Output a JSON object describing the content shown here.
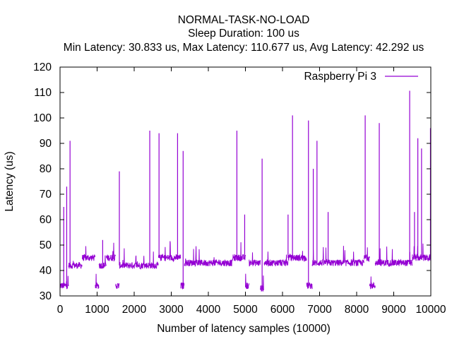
{
  "chart_data": {
    "type": "line",
    "title": "NORMAL-TASK-NO-LOAD",
    "subtitle": "Sleep Duration: 100 us",
    "stats": "Min Latency: 30.833 us, Max Latency: 110.677 us, Avg Latency: 42.292 us",
    "xlabel": "Number of latency samples (10000)",
    "ylabel": "Latency (us)",
    "xlim": [
      0,
      10000
    ],
    "ylim": [
      30,
      120
    ],
    "xticks": [
      0,
      1000,
      2000,
      3000,
      4000,
      5000,
      6000,
      7000,
      8000,
      9000,
      10000
    ],
    "yticks": [
      30,
      40,
      50,
      60,
      70,
      80,
      90,
      100,
      110,
      120
    ],
    "grid": false,
    "legend_position": "top-right",
    "series": [
      {
        "name": "Raspberry Pi 3",
        "color": "#9400d3",
        "segments": [
          {
            "x_start": 0,
            "x_end": 230,
            "level": 34
          },
          {
            "x_start": 230,
            "x_end": 600,
            "level": 42
          },
          {
            "x_start": 600,
            "x_end": 950,
            "level": 45
          },
          {
            "x_start": 950,
            "x_end": 1050,
            "level": 34
          },
          {
            "x_start": 1050,
            "x_end": 1250,
            "level": 42
          },
          {
            "x_start": 1250,
            "x_end": 1500,
            "level": 45
          },
          {
            "x_start": 1500,
            "x_end": 1600,
            "level": 34
          },
          {
            "x_start": 1600,
            "x_end": 2650,
            "level": 42
          },
          {
            "x_start": 2650,
            "x_end": 3250,
            "level": 45
          },
          {
            "x_start": 3250,
            "x_end": 3350,
            "level": 34
          },
          {
            "x_start": 3350,
            "x_end": 4650,
            "level": 43
          },
          {
            "x_start": 4650,
            "x_end": 5000,
            "level": 45
          },
          {
            "x_start": 5000,
            "x_end": 5100,
            "level": 34
          },
          {
            "x_start": 5100,
            "x_end": 5400,
            "level": 43
          },
          {
            "x_start": 5400,
            "x_end": 5500,
            "level": 33
          },
          {
            "x_start": 5500,
            "x_end": 6150,
            "level": 43
          },
          {
            "x_start": 6150,
            "x_end": 6650,
            "level": 45
          },
          {
            "x_start": 6650,
            "x_end": 6800,
            "level": 34
          },
          {
            "x_start": 6800,
            "x_end": 8200,
            "level": 43
          },
          {
            "x_start": 8200,
            "x_end": 8350,
            "level": 45
          },
          {
            "x_start": 8350,
            "x_end": 8500,
            "level": 34
          },
          {
            "x_start": 8500,
            "x_end": 9500,
            "level": 43
          },
          {
            "x_start": 9500,
            "x_end": 10000,
            "level": 45
          }
        ],
        "spikes": [
          {
            "x": 100,
            "y": 65
          },
          {
            "x": 180,
            "y": 73
          },
          {
            "x": 270,
            "y": 91
          },
          {
            "x": 1150,
            "y": 52
          },
          {
            "x": 1600,
            "y": 79
          },
          {
            "x": 2420,
            "y": 95
          },
          {
            "x": 2670,
            "y": 94
          },
          {
            "x": 3170,
            "y": 94
          },
          {
            "x": 3320,
            "y": 87
          },
          {
            "x": 4770,
            "y": 95
          },
          {
            "x": 4980,
            "y": 62
          },
          {
            "x": 5450,
            "y": 84
          },
          {
            "x": 6150,
            "y": 62
          },
          {
            "x": 6270,
            "y": 101
          },
          {
            "x": 6700,
            "y": 99
          },
          {
            "x": 6830,
            "y": 80
          },
          {
            "x": 6930,
            "y": 91
          },
          {
            "x": 7230,
            "y": 63
          },
          {
            "x": 8230,
            "y": 101
          },
          {
            "x": 8610,
            "y": 98
          },
          {
            "x": 9430,
            "y": 110.7
          },
          {
            "x": 9560,
            "y": 63
          },
          {
            "x": 9650,
            "y": 92
          },
          {
            "x": 9750,
            "y": 88
          },
          {
            "x": 9990,
            "y": 96
          }
        ]
      }
    ]
  }
}
